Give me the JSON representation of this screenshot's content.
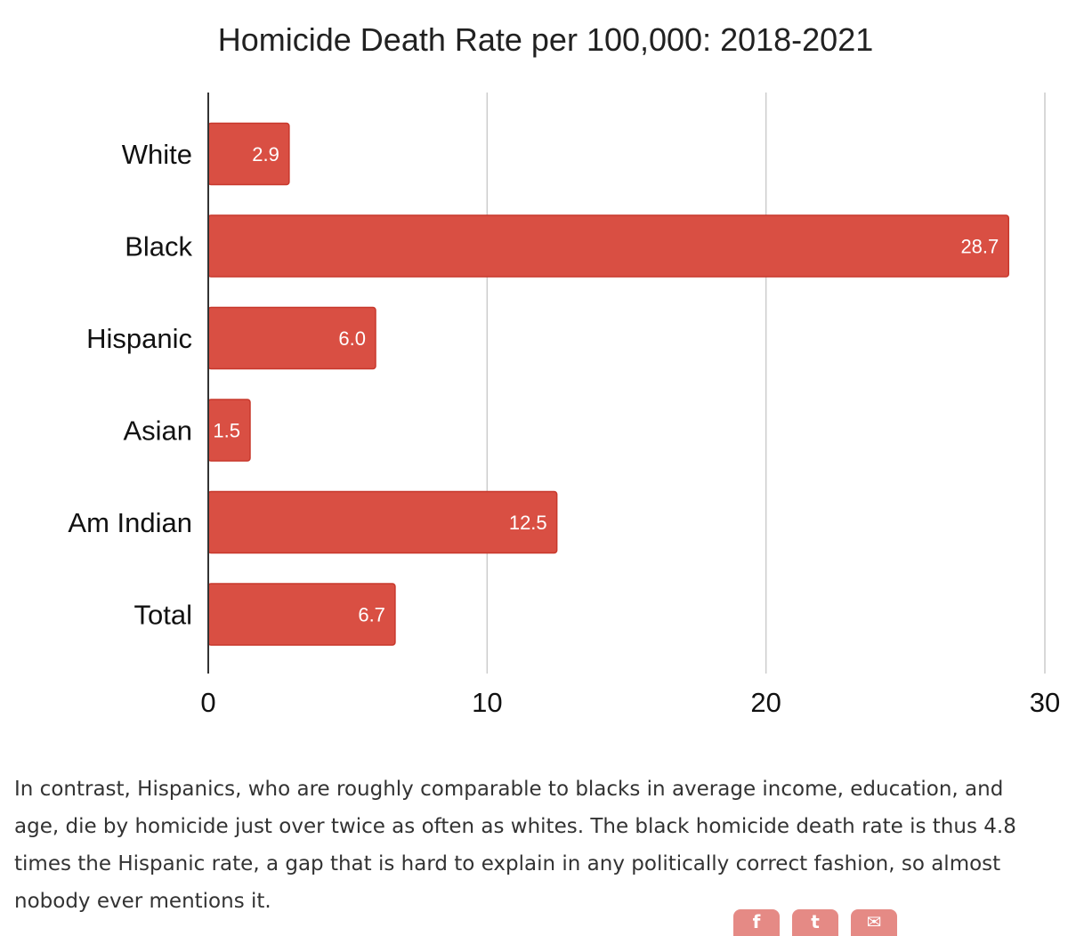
{
  "chart_data": {
    "type": "bar",
    "orientation": "horizontal",
    "title": "Homicide Death Rate per 100,000: 2018-2021",
    "categories": [
      "White",
      "Black",
      "Hispanic",
      "Asian",
      "Am Indian",
      "Total"
    ],
    "values": [
      2.9,
      28.7,
      6.0,
      1.5,
      12.5,
      6.7
    ],
    "data_labels": [
      "2.9",
      "28.7",
      "6.0",
      "1.5",
      "12.5",
      "6.7"
    ],
    "xlim": [
      0,
      30
    ],
    "x_ticks": [
      0,
      10,
      20,
      30
    ],
    "x_tick_labels": [
      "0",
      "10",
      "20",
      "30"
    ],
    "grid": true,
    "legend": "none",
    "bar_color": "#d94f43",
    "bar_edge_color": "#c8382c"
  },
  "article": {
    "paragraph": "In contrast, Hispanics, who are roughly comparable to blacks in average income, education, and age, die by homicide just over twice as often as whites. The black homicide death rate is thus 4.8 times the Hispanic rate, a gap that is hard to explain in any politically correct fashion, so almost nobody ever mentions it."
  },
  "share": {
    "buttons": [
      {
        "icon": "facebook-icon",
        "glyph": "f"
      },
      {
        "icon": "twitter-icon",
        "glyph": "t"
      },
      {
        "icon": "email-icon",
        "glyph": "✉"
      }
    ],
    "color": "#e58a85"
  }
}
